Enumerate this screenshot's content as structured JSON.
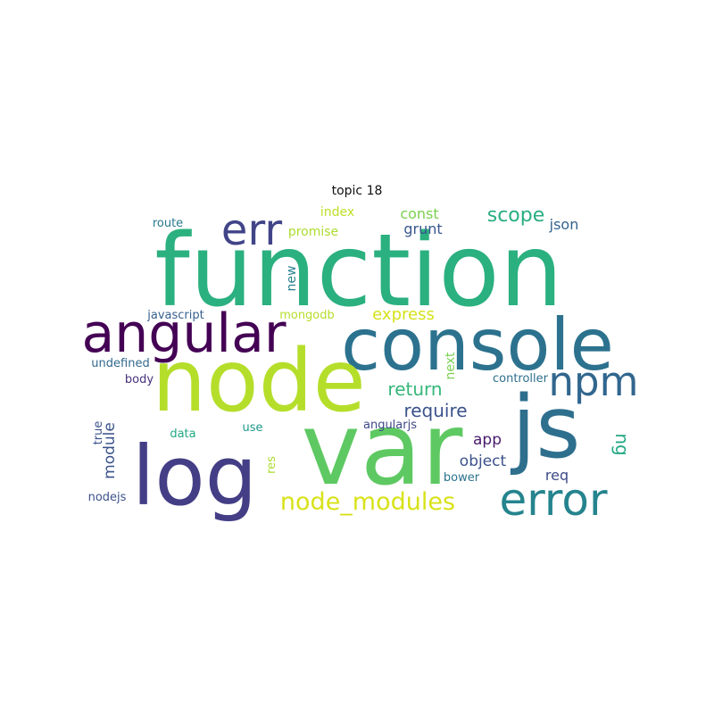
{
  "title": "topic 18",
  "words": [
    {
      "text": "function",
      "color": "#2bb07f"
    },
    {
      "text": "console",
      "color": "#2c728e"
    },
    {
      "text": "node",
      "color": "#b5de2b"
    },
    {
      "text": "var",
      "color": "#5ec962"
    },
    {
      "text": "js",
      "color": "#2e6f8e"
    },
    {
      "text": "log",
      "color": "#433e85"
    },
    {
      "text": "angular",
      "color": "#440154"
    },
    {
      "text": "error",
      "color": "#25848e"
    },
    {
      "text": "npm",
      "color": "#31668e"
    },
    {
      "text": "err",
      "color": "#414487"
    },
    {
      "text": "node_modules",
      "color": "#d8e219"
    },
    {
      "text": "scope",
      "color": "#28ae80"
    },
    {
      "text": "return",
      "color": "#35b779"
    },
    {
      "text": "require",
      "color": "#3b528b"
    },
    {
      "text": "express",
      "color": "#d5e21a"
    },
    {
      "text": "app",
      "color": "#481a6c"
    },
    {
      "text": "object",
      "color": "#3b528b"
    },
    {
      "text": "const",
      "color": "#7ad151"
    },
    {
      "text": "grunt",
      "color": "#39568c"
    },
    {
      "text": "json",
      "color": "#33638d"
    },
    {
      "text": "req",
      "color": "#3e4a89"
    },
    {
      "text": "promise",
      "color": "#addc30"
    },
    {
      "text": "index",
      "color": "#bddf26"
    },
    {
      "text": "mongodb",
      "color": "#b5de2b"
    },
    {
      "text": "javascript",
      "color": "#355f8d"
    },
    {
      "text": "route",
      "color": "#2a788e"
    },
    {
      "text": "data",
      "color": "#22a884"
    },
    {
      "text": "controller",
      "color": "#2d708e"
    },
    {
      "text": "bower",
      "color": "#2c728e"
    },
    {
      "text": "body",
      "color": "#46327e"
    },
    {
      "text": "undefined",
      "color": "#31688e"
    },
    {
      "text": "nodejs",
      "color": "#3b528b"
    },
    {
      "text": "angularjs",
      "color": "#3f4788"
    },
    {
      "text": "use",
      "color": "#1f988b"
    },
    {
      "text": "ng",
      "color": "#22a884"
    },
    {
      "text": "module",
      "color": "#3b528b"
    },
    {
      "text": "new",
      "color": "#26828e"
    },
    {
      "text": "next",
      "color": "#7ad151"
    },
    {
      "text": "true",
      "color": "#3b528b"
    },
    {
      "text": "res",
      "color": "#addc30"
    }
  ]
}
